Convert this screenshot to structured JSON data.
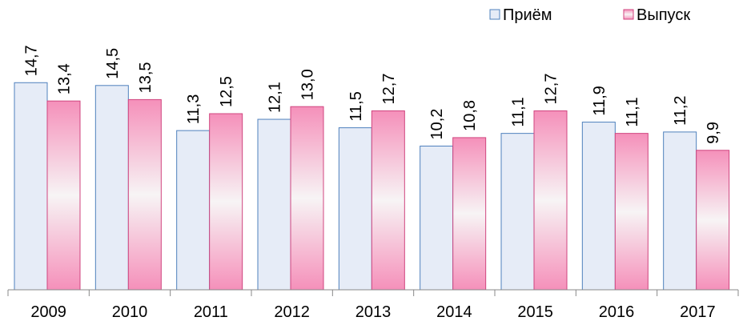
{
  "chart_data": {
    "type": "bar",
    "categories": [
      "2009",
      "2010",
      "2011",
      "2012",
      "2013",
      "2014",
      "2015",
      "2016",
      "2017"
    ],
    "series": [
      {
        "name": "Приём",
        "color": "#e6ecf7",
        "values": [
          14.7,
          14.5,
          11.3,
          12.1,
          11.5,
          10.2,
          11.1,
          11.9,
          11.2
        ],
        "value_labels": [
          "14,7",
          "14,5",
          "11,3",
          "12,1",
          "11,5",
          "10,2",
          "11,1",
          "11,9",
          "11,2"
        ]
      },
      {
        "name": "Выпуск",
        "color": "#f590ba",
        "values": [
          13.4,
          13.5,
          12.5,
          13.0,
          12.7,
          10.8,
          12.7,
          11.1,
          9.9
        ],
        "value_labels": [
          "13,4",
          "13,5",
          "12,5",
          "13,0",
          "12,7",
          "10,8",
          "12,7",
          "11,1",
          "9,9"
        ]
      }
    ],
    "ylim": [
      0,
      20
    ],
    "legend": "top-right"
  }
}
